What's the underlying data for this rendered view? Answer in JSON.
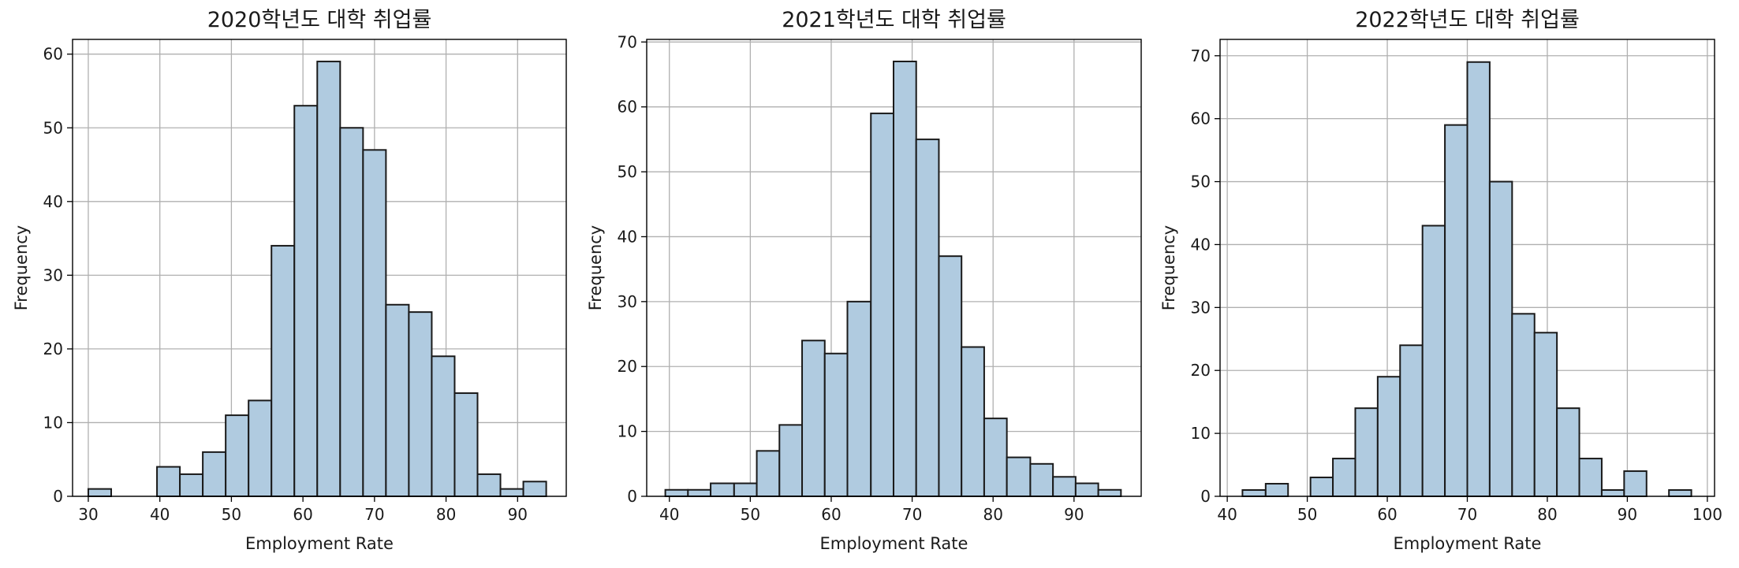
{
  "colors": {
    "bar_fill": "#b0cbe0",
    "bar_edge": "#1a1a1a",
    "grid": "#b0b0b0"
  },
  "chart_data": [
    {
      "type": "bar",
      "title": "2020학년도 대학 취업률",
      "xlabel": "Employment Rate",
      "ylabel": "Frequency",
      "grid": true,
      "xlim": [
        27.8,
        96.8
      ],
      "ylim": [
        0,
        62
      ],
      "xticks": [
        30,
        40,
        50,
        60,
        70,
        80,
        90
      ],
      "yticks": [
        0,
        10,
        20,
        30,
        40,
        50,
        60
      ],
      "bin_edges": [
        30,
        33.2,
        36.4,
        39.6,
        42.8,
        46.0,
        49.2,
        52.4,
        55.6,
        58.8,
        62.0,
        65.2,
        68.4,
        71.6,
        74.8,
        78.0,
        81.2,
        84.4,
        87.6,
        90.8,
        94.0
      ],
      "values": [
        1,
        0,
        0,
        4,
        3,
        6,
        11,
        13,
        34,
        53,
        59,
        50,
        47,
        26,
        25,
        19,
        14,
        3,
        1,
        2
      ]
    },
    {
      "type": "bar",
      "title": "2021학년도 대학 취업률",
      "xlabel": "Employment Rate",
      "ylabel": "Frequency",
      "grid": true,
      "xlim": [
        37.2,
        98.3
      ],
      "ylim": [
        0,
        70.4
      ],
      "xticks": [
        40,
        50,
        60,
        70,
        80,
        90
      ],
      "yticks": [
        0,
        10,
        20,
        30,
        40,
        50,
        60,
        70
      ],
      "bin_edges": [
        39.5,
        42.3,
        45.1,
        48.0,
        50.8,
        53.6,
        56.4,
        59.2,
        62.0,
        64.9,
        67.7,
        70.5,
        73.3,
        76.1,
        78.9,
        81.7,
        84.6,
        87.4,
        90.2,
        93.0,
        95.8
      ],
      "values": [
        1,
        1,
        2,
        2,
        7,
        11,
        24,
        22,
        30,
        59,
        67,
        55,
        37,
        23,
        12,
        6,
        5,
        3,
        2,
        1
      ]
    },
    {
      "type": "bar",
      "title": "2022학년도 대학 취업률",
      "xlabel": "Employment Rate",
      "ylabel": "Frequency",
      "grid": true,
      "xlim": [
        39.1,
        100.9
      ],
      "ylim": [
        0,
        72.6
      ],
      "xticks": [
        40,
        50,
        60,
        70,
        80,
        90,
        100
      ],
      "yticks": [
        0,
        10,
        20,
        30,
        40,
        50,
        60,
        70
      ],
      "bin_edges": [
        41.9,
        44.8,
        47.6,
        50.4,
        53.2,
        56.0,
        58.8,
        61.6,
        64.4,
        67.2,
        70.0,
        72.8,
        75.6,
        78.4,
        81.2,
        84.0,
        86.8,
        89.6,
        92.4,
        95.2,
        98.0
      ],
      "values": [
        1,
        2,
        0,
        3,
        6,
        14,
        19,
        24,
        43,
        59,
        69,
        50,
        29,
        26,
        14,
        6,
        1,
        4,
        0,
        1
      ]
    }
  ]
}
